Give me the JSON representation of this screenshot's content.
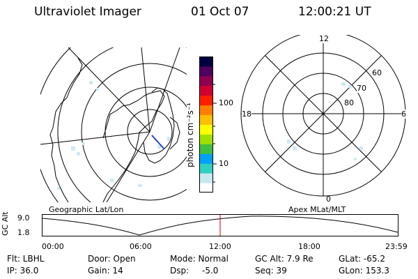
{
  "header": {
    "instrument": "Ultraviolet Imager",
    "date": "01 Oct 07",
    "time": "12:00:21 UT"
  },
  "colorbar": {
    "unit_label": "photon cm⁻²s⁻¹",
    "ticks": [
      "100",
      "10"
    ],
    "scale": "log",
    "colors": [
      "#ffffff",
      "#c8e8f0",
      "#30d0c0",
      "#00a0ff",
      "#40c040",
      "#a0e000",
      "#ffff00",
      "#ffc000",
      "#ff8000",
      "#ff2000",
      "#d00030",
      "#900050",
      "#500060",
      "#000040"
    ]
  },
  "left_map": {
    "label": "Geographic Lat/Lon"
  },
  "right_map": {
    "label": "Apex MLat/MLT",
    "mlt_labels": {
      "top": "12",
      "bottom": "0",
      "left": "18",
      "right": "6"
    },
    "lat_labels": [
      "60",
      "70",
      "80"
    ]
  },
  "altitude_plot": {
    "ylabel": "GC Alt",
    "ymax_label": "9.0",
    "ymin_label": "1.8",
    "x_ticks": [
      "00:00",
      "06:00",
      "12:00",
      "18:00",
      "23:59"
    ],
    "current_time_fraction": 0.5,
    "marker_color": "#cc0000"
  },
  "info": {
    "filter": "Flt: LBHL",
    "ip": "IP: 36.0",
    "door": "Door: Open",
    "gain": "Gain: 14",
    "mode": "Mode: Normal",
    "dsp_label": "Dsp:",
    "dsp_value": "-5.0",
    "gc_alt": "GC Alt: 7.9 Re",
    "seq": "Seq: 39",
    "glat": "GLat: -65.2",
    "glon": "GLon: 153.3"
  }
}
